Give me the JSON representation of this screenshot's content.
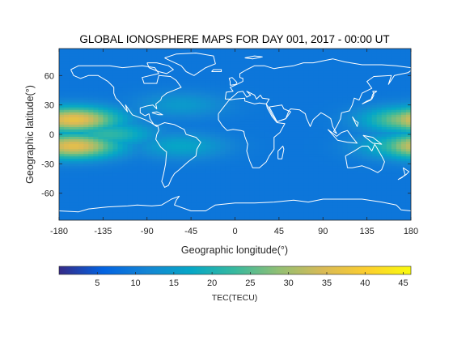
{
  "chart_data": {
    "type": "heatmap",
    "title": "GLOBAL IONOSPHERE MAPS FOR DAY 001, 2017 - 00:00 UT",
    "xlabel": "Geographic longitude(°)",
    "ylabel": "Geographic latitude(°)",
    "xlim": [
      -180,
      180
    ],
    "ylim": [
      -87.5,
      87.5
    ],
    "xticks": [
      "-180",
      "-135",
      "-90",
      "-45",
      "0",
      "45",
      "90",
      "135",
      "180"
    ],
    "xtick_values": [
      -180,
      -135,
      -90,
      -45,
      0,
      45,
      90,
      135,
      180
    ],
    "yticks": [
      "60",
      "30",
      "0",
      "-30",
      "-60"
    ],
    "ytick_values": [
      60,
      30,
      0,
      -30,
      -60
    ],
    "colorbar": {
      "label": "TEC(TECU)",
      "range": [
        0,
        46
      ],
      "ticks": [
        "5",
        "10",
        "15",
        "20",
        "25",
        "30",
        "35",
        "40",
        "45"
      ],
      "tick_values": [
        5,
        10,
        15,
        20,
        25,
        30,
        35,
        40,
        45
      ],
      "colormap": "parula",
      "colors": [
        "#352a87",
        "#0363e1",
        "#1485d4",
        "#06a7c6",
        "#38b99e",
        "#92bf73",
        "#d9ba56",
        "#fcce2e",
        "#f9fb0e"
      ]
    },
    "overlay": "coastlines (white)",
    "features": [
      {
        "description": "equatorial anomaly crest north",
        "lon": -165,
        "lat": 15,
        "tec": 37
      },
      {
        "description": "equatorial anomaly crest south",
        "lon": -165,
        "lat": -12,
        "tec": 36
      },
      {
        "description": "equatorial anomaly crest north (dateline)",
        "lon": 180,
        "lat": 15,
        "tec": 30
      },
      {
        "description": "equatorial anomaly crest south (dateline)",
        "lon": 178,
        "lat": -12,
        "tec": 25
      },
      {
        "description": "pacific band",
        "lon": -130,
        "lat": 0,
        "tec": 22
      },
      {
        "description": "south america patch",
        "lon": -55,
        "lat": -12,
        "tec": 17
      },
      {
        "description": "north atlantic lobe",
        "lon": -55,
        "lat": 30,
        "tec": 15
      }
    ],
    "background_tec": 9,
    "polar_tec": 3
  }
}
